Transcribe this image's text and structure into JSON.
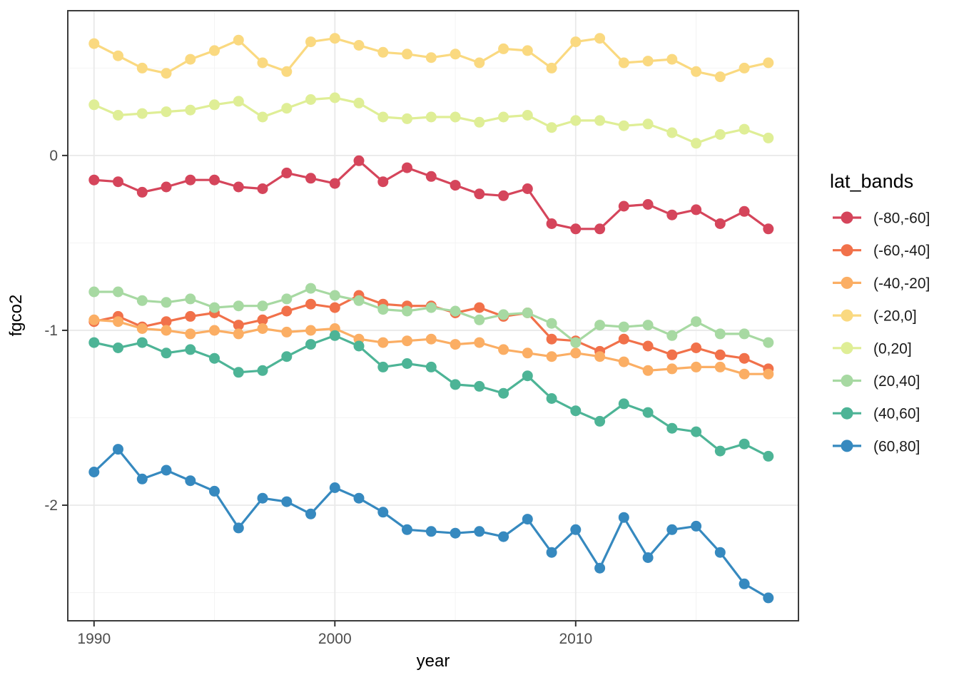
{
  "figure": {
    "background": "#ffffff",
    "panel_border_color": "#3c3c3c",
    "grid_major_color": "#e9e9e9",
    "grid_minor_color": "#f4f4f4",
    "tick_color": "#333333",
    "tick_label_color": "#4d4d4d"
  },
  "legend": {
    "title": "lat_bands"
  },
  "chart_data": {
    "type": "line",
    "title": "",
    "xlabel": "year",
    "ylabel": "fgco2",
    "legend_title": "lat_bands",
    "legend_position": "right",
    "grid": true,
    "xlim": [
      1988.91,
      2019.25
    ],
    "ylim": [
      -2.661,
      0.828
    ],
    "x_ticks": [
      {
        "value": 1990,
        "label": "1990"
      },
      {
        "value": 2000,
        "label": "2000"
      },
      {
        "value": 2010,
        "label": "2010"
      }
    ],
    "x_minor_ticks": [
      1995,
      2005,
      2015
    ],
    "y_ticks": [
      {
        "value": 0,
        "label": "0"
      },
      {
        "value": -1,
        "label": "-1"
      },
      {
        "value": -2,
        "label": "-2"
      }
    ],
    "y_minor_ticks": [
      0.5,
      -0.5,
      -1.5,
      -2.5
    ],
    "x": [
      1990,
      1991,
      1992,
      1993,
      1994,
      1995,
      1996,
      1997,
      1998,
      1999,
      2000,
      2001,
      2002,
      2003,
      2004,
      2005,
      2006,
      2007,
      2008,
      2009,
      2010,
      2011,
      2012,
      2013,
      2014,
      2015,
      2016,
      2017,
      2018
    ],
    "series": [
      {
        "name": "(-80,-60]",
        "color": "#d5455b",
        "values": [
          -0.14,
          -0.15,
          -0.21,
          -0.18,
          -0.14,
          -0.14,
          -0.18,
          -0.19,
          -0.1,
          -0.13,
          -0.16,
          -0.03,
          -0.15,
          -0.07,
          -0.12,
          -0.17,
          -0.22,
          -0.23,
          -0.19,
          -0.39,
          -0.42,
          -0.42,
          -0.29,
          -0.28,
          -0.34,
          -0.31,
          -0.39,
          -0.32,
          -0.42
        ]
      },
      {
        "name": "(-60,-40]",
        "color": "#f1714a",
        "values": [
          -0.95,
          -0.92,
          -0.98,
          -0.95,
          -0.92,
          -0.9,
          -0.97,
          -0.94,
          -0.89,
          -0.85,
          -0.87,
          -0.8,
          -0.85,
          -0.86,
          -0.86,
          -0.9,
          -0.87,
          -0.92,
          -0.9,
          -1.05,
          -1.06,
          -1.12,
          -1.05,
          -1.09,
          -1.14,
          -1.1,
          -1.14,
          -1.16,
          -1.22
        ]
      },
      {
        "name": "(-40,-20]",
        "color": "#fbae64",
        "values": [
          -0.94,
          -0.95,
          -0.99,
          -1.0,
          -1.02,
          -1.0,
          -1.02,
          -0.99,
          -1.01,
          -1.0,
          -0.99,
          -1.05,
          -1.07,
          -1.06,
          -1.05,
          -1.08,
          -1.07,
          -1.11,
          -1.13,
          -1.15,
          -1.13,
          -1.15,
          -1.18,
          -1.23,
          -1.22,
          -1.21,
          -1.21,
          -1.25,
          -1.25
        ]
      },
      {
        "name": "(-20,0]",
        "color": "#fad980",
        "values": [
          0.64,
          0.57,
          0.5,
          0.47,
          0.55,
          0.6,
          0.66,
          0.53,
          0.48,
          0.65,
          0.67,
          0.63,
          0.59,
          0.58,
          0.56,
          0.58,
          0.53,
          0.61,
          0.6,
          0.5,
          0.65,
          0.67,
          0.53,
          0.54,
          0.55,
          0.48,
          0.45,
          0.5,
          0.53
        ]
      },
      {
        "name": "(0,20]",
        "color": "#dfee96",
        "values": [
          0.29,
          0.23,
          0.24,
          0.25,
          0.26,
          0.29,
          0.31,
          0.22,
          0.27,
          0.32,
          0.33,
          0.3,
          0.22,
          0.21,
          0.22,
          0.22,
          0.19,
          0.22,
          0.23,
          0.16,
          0.2,
          0.2,
          0.17,
          0.18,
          0.13,
          0.07,
          0.12,
          0.15,
          0.1
        ]
      },
      {
        "name": "(20,40]",
        "color": "#a7d9a2",
        "values": [
          -0.78,
          -0.78,
          -0.83,
          -0.84,
          -0.82,
          -0.87,
          -0.86,
          -0.86,
          -0.82,
          -0.76,
          -0.8,
          -0.83,
          -0.88,
          -0.89,
          -0.87,
          -0.89,
          -0.94,
          -0.91,
          -0.9,
          -0.96,
          -1.07,
          -0.97,
          -0.98,
          -0.97,
          -1.03,
          -0.95,
          -1.02,
          -1.02,
          -1.07
        ]
      },
      {
        "name": "(40,60]",
        "color": "#4db496",
        "values": [
          -1.07,
          -1.1,
          -1.07,
          -1.13,
          -1.11,
          -1.16,
          -1.24,
          -1.23,
          -1.15,
          -1.08,
          -1.03,
          -1.09,
          -1.21,
          -1.19,
          -1.21,
          -1.31,
          -1.32,
          -1.36,
          -1.26,
          -1.39,
          -1.46,
          -1.52,
          -1.42,
          -1.47,
          -1.56,
          -1.58,
          -1.69,
          -1.65,
          -1.72
        ]
      },
      {
        "name": "(60,80]",
        "color": "#3689bf",
        "values": [
          -1.81,
          -1.68,
          -1.85,
          -1.8,
          -1.86,
          -1.92,
          -2.13,
          -1.96,
          -1.98,
          -2.05,
          -1.9,
          -1.96,
          -2.04,
          -2.14,
          -2.15,
          -2.16,
          -2.15,
          -2.18,
          -2.08,
          -2.27,
          -2.14,
          -2.36,
          -2.07,
          -2.3,
          -2.14,
          -2.12,
          -2.27,
          -2.45,
          -2.53
        ]
      }
    ]
  }
}
